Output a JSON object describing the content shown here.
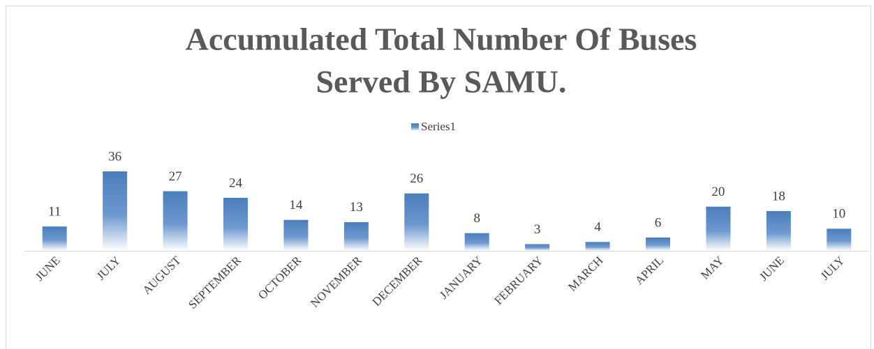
{
  "chart_data": {
    "type": "bar",
    "title": [
      "Accumulated Total Number Of Buses",
      "Served By SAMU."
    ],
    "categories": [
      "JUNE",
      "JULY",
      "AUGUST",
      "SEPTEMBER",
      "OCTOBER",
      "NOVEMBER",
      "DECEMBER",
      "JANUARY",
      "FEBRUARY",
      "MARCH",
      "APRIL",
      "MAY",
      "JUNE",
      "JULY"
    ],
    "series": [
      {
        "name": "Series1",
        "color": "#4a7ebb",
        "values": [
          11,
          36,
          27,
          24,
          14,
          13,
          26,
          8,
          3,
          4,
          6,
          20,
          18,
          10
        ]
      }
    ],
    "legend": "top"
  }
}
